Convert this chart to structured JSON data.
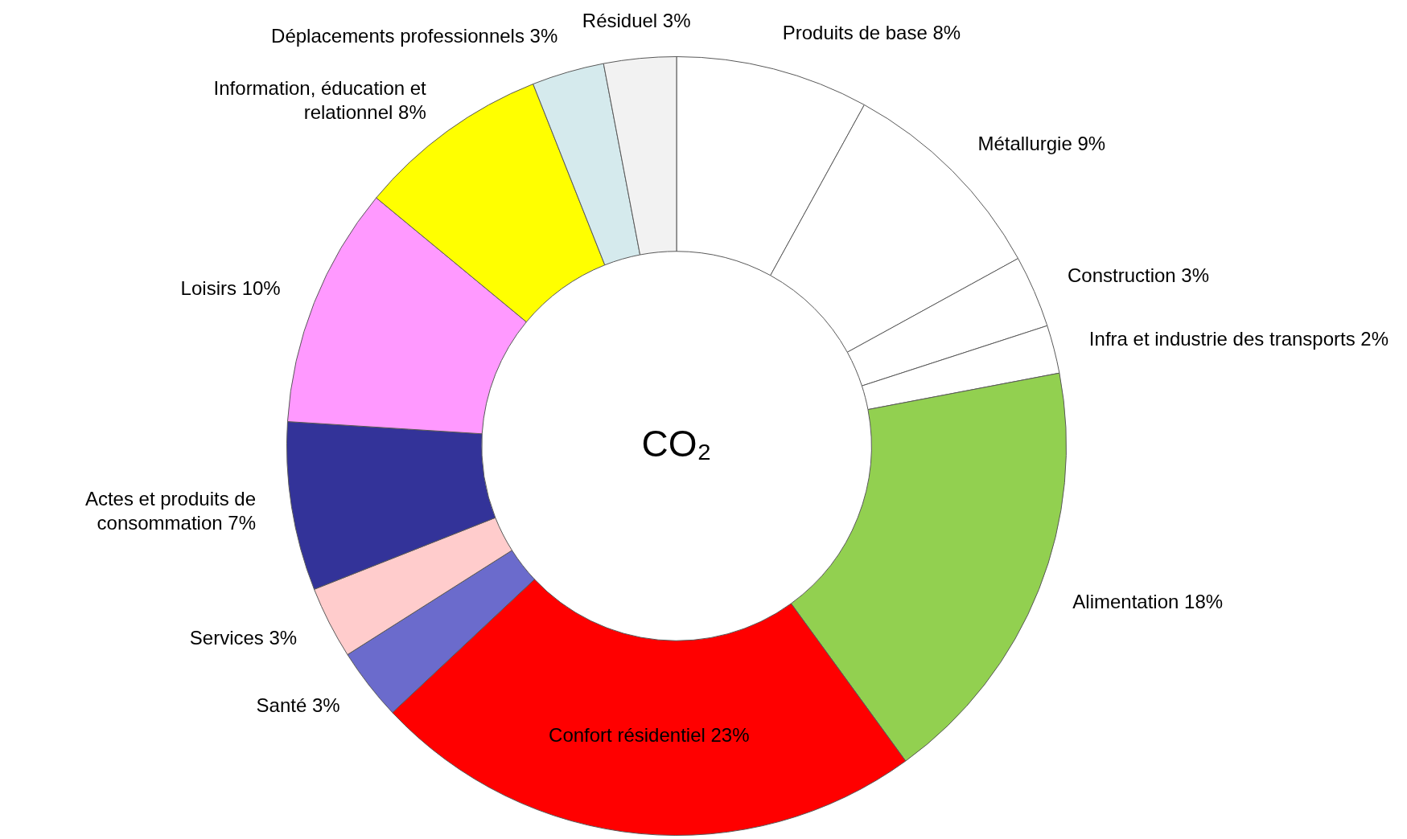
{
  "chart_data": {
    "type": "donut",
    "title": "CO₂",
    "categories": [
      "Produits de base",
      "Métallurgie",
      "Construction",
      "Infra et industrie des transports",
      "Alimentation",
      "Confort résidentiel",
      "Santé",
      "Services",
      "Actes et produits de consommation",
      "Loisirs",
      "Information, éducation et relationnel",
      "Déplacements professionnels",
      "Résiduel"
    ],
    "values": [
      8,
      9,
      3,
      2,
      18,
      23,
      3,
      3,
      7,
      10,
      8,
      3,
      3
    ],
    "value_labels": [
      "8%",
      "9%",
      "3%",
      "2%",
      "18%",
      "23%",
      "3%",
      "3%",
      "7%",
      "10%",
      "8%",
      "3%",
      "3%"
    ],
    "colors": [
      "#ffffff",
      "#ffffff",
      "#ffffff",
      "#ffffff",
      "#92d050",
      "#ff0000",
      "#6b6bcc",
      "#ffcccc",
      "#333399",
      "#ff99ff",
      "#ffff00",
      "#d5eaed",
      "#f2f2f2"
    ],
    "legend": false
  }
}
